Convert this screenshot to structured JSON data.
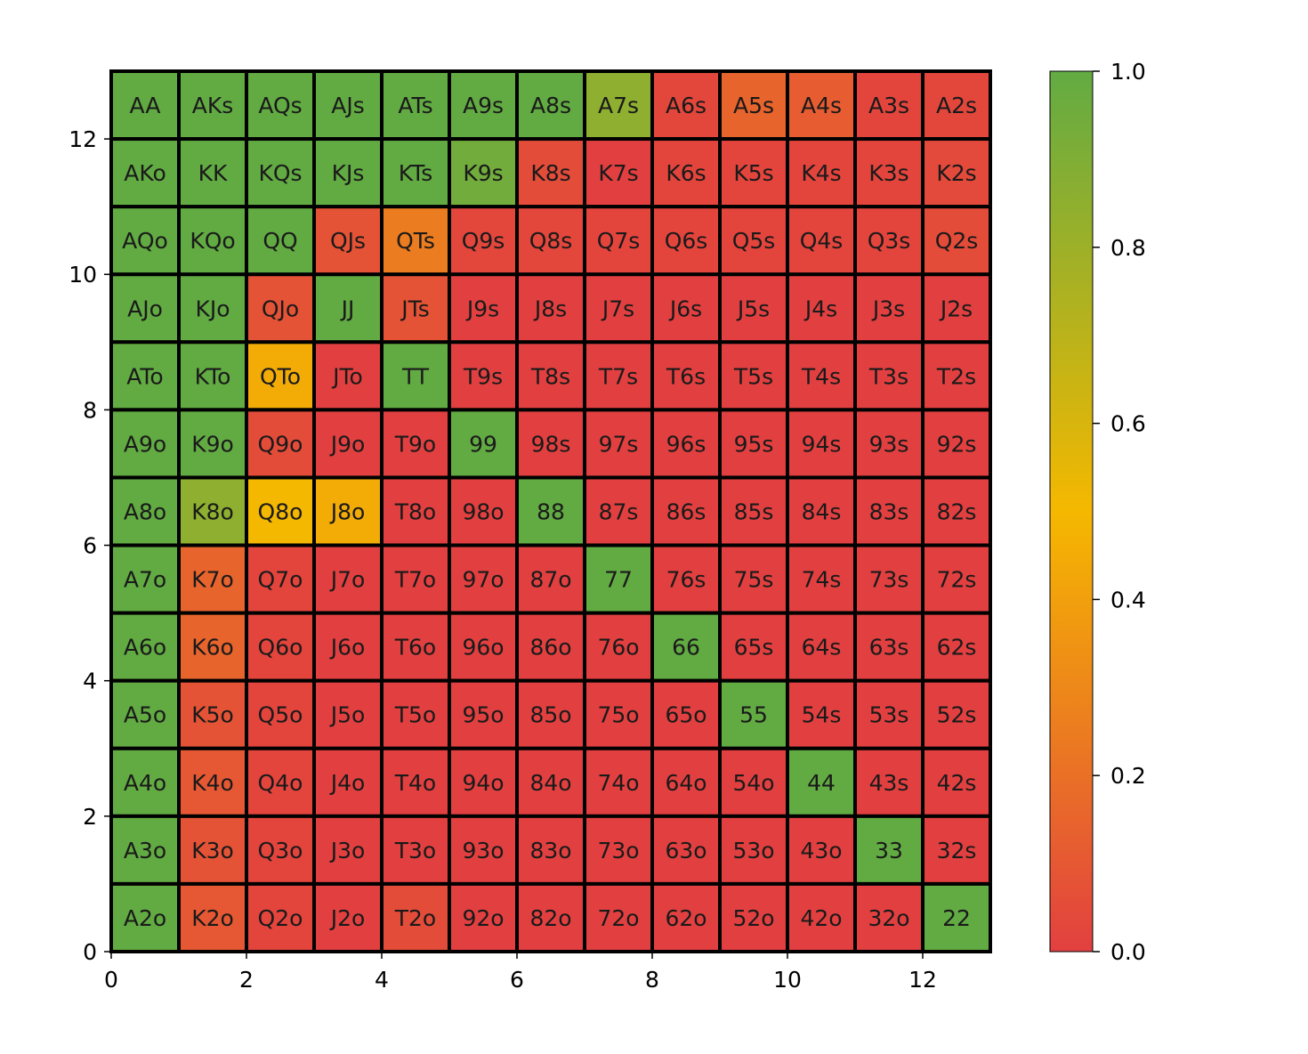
{
  "chart_data": {
    "type": "heatmap",
    "title": "",
    "xlabel": "",
    "ylabel": "",
    "xlim": [
      0,
      13
    ],
    "ylim": [
      0,
      13
    ],
    "xticks": [
      "0",
      "2",
      "4",
      "6",
      "8",
      "10",
      "12"
    ],
    "yticks": [
      "0",
      "2",
      "4",
      "6",
      "8",
      "10",
      "12"
    ],
    "colorbar": {
      "range": [
        0,
        1
      ],
      "ticks": [
        "0.0",
        "0.2",
        "0.4",
        "0.6",
        "0.8",
        "1.0"
      ],
      "colors": [
        "#e24040",
        "#f5b800",
        "#62ab43"
      ]
    },
    "rows": [
      {
        "labels": [
          "AA",
          "AKs",
          "AQs",
          "AJs",
          "ATs",
          "A9s",
          "A8s",
          "A7s",
          "A6s",
          "A5s",
          "A4s",
          "A3s",
          "A2s"
        ],
        "values": [
          1,
          1,
          1,
          1,
          1,
          1,
          1,
          0.85,
          0.03,
          0.15,
          0.12,
          0.02,
          0.03
        ]
      },
      {
        "labels": [
          "AKo",
          "KK",
          "KQs",
          "KJs",
          "KTs",
          "K9s",
          "K8s",
          "K7s",
          "K6s",
          "K5s",
          "K4s",
          "K3s",
          "K2s"
        ],
        "values": [
          1,
          1,
          1,
          1,
          1,
          0.95,
          0.05,
          0,
          0.02,
          0.02,
          0.02,
          0.02,
          0.04
        ]
      },
      {
        "labels": [
          "AQo",
          "KQo",
          "QQ",
          "QJs",
          "QTs",
          "Q9s",
          "Q8s",
          "Q7s",
          "Q6s",
          "Q5s",
          "Q4s",
          "Q3s",
          "Q2s"
        ],
        "values": [
          1,
          1,
          1,
          0.08,
          0.25,
          0.03,
          0.03,
          0.02,
          0.02,
          0.02,
          0.02,
          0.02,
          0.05
        ]
      },
      {
        "labels": [
          "AJo",
          "KJo",
          "QJo",
          "JJ",
          "JTs",
          "J9s",
          "J8s",
          "J7s",
          "J6s",
          "J5s",
          "J4s",
          "J3s",
          "J2s"
        ],
        "values": [
          1,
          1,
          0.08,
          1,
          0.08,
          0,
          0,
          0,
          0,
          0,
          0,
          0,
          0
        ]
      },
      {
        "labels": [
          "ATo",
          "KTo",
          "QTo",
          "JTo",
          "TT",
          "T9s",
          "T8s",
          "T7s",
          "T6s",
          "T5s",
          "T4s",
          "T3s",
          "T2s"
        ],
        "values": [
          1,
          1,
          0.45,
          0,
          1,
          0,
          0,
          0,
          0,
          0,
          0,
          0,
          0
        ]
      },
      {
        "labels": [
          "A9o",
          "K9o",
          "Q9o",
          "J9o",
          "T9o",
          "99",
          "98s",
          "97s",
          "96s",
          "95s",
          "94s",
          "93s",
          "92s"
        ],
        "values": [
          1,
          1,
          0.05,
          0,
          0,
          1,
          0,
          0,
          0,
          0,
          0,
          0,
          0
        ]
      },
      {
        "labels": [
          "A8o",
          "K8o",
          "Q8o",
          "J8o",
          "T8o",
          "98o",
          "88",
          "87s",
          "86s",
          "85s",
          "84s",
          "83s",
          "82s"
        ],
        "values": [
          1,
          0.85,
          0.5,
          0.45,
          0,
          0,
          1,
          0,
          0,
          0,
          0,
          0,
          0
        ]
      },
      {
        "labels": [
          "A7o",
          "K7o",
          "Q7o",
          "J7o",
          "T7o",
          "97o",
          "87o",
          "77",
          "76s",
          "75s",
          "74s",
          "73s",
          "72s"
        ],
        "values": [
          1,
          0.15,
          0.02,
          0,
          0,
          0,
          0,
          1,
          0,
          0,
          0,
          0,
          0
        ]
      },
      {
        "labels": [
          "A6o",
          "K6o",
          "Q6o",
          "J6o",
          "T6o",
          "96o",
          "86o",
          "76o",
          "66",
          "65s",
          "64s",
          "63s",
          "62s"
        ],
        "values": [
          1,
          0.15,
          0.02,
          0,
          0,
          0,
          0,
          0,
          1,
          0,
          0,
          0,
          0
        ]
      },
      {
        "labels": [
          "A5o",
          "K5o",
          "Q5o",
          "J5o",
          "T5o",
          "95o",
          "85o",
          "75o",
          "65o",
          "55",
          "54s",
          "53s",
          "52s"
        ],
        "values": [
          1,
          0.08,
          0.02,
          0,
          0,
          0,
          0,
          0,
          0,
          1,
          0,
          0,
          0
        ]
      },
      {
        "labels": [
          "A4o",
          "K4o",
          "Q4o",
          "J4o",
          "T4o",
          "94o",
          "84o",
          "74o",
          "64o",
          "54o",
          "44",
          "43s",
          "42s"
        ],
        "values": [
          1,
          0.1,
          0.02,
          0,
          0,
          0,
          0,
          0,
          0,
          0,
          1,
          0,
          0
        ]
      },
      {
        "labels": [
          "A3o",
          "K3o",
          "Q3o",
          "J3o",
          "T3o",
          "93o",
          "83o",
          "73o",
          "63o",
          "53o",
          "43o",
          "33",
          "32s"
        ],
        "values": [
          1,
          0.08,
          0.02,
          0,
          0,
          0,
          0,
          0,
          0,
          0,
          0,
          1,
          0
        ]
      },
      {
        "labels": [
          "A2o",
          "K2o",
          "Q2o",
          "J2o",
          "T2o",
          "92o",
          "82o",
          "72o",
          "62o",
          "52o",
          "42o",
          "32o",
          "22"
        ],
        "values": [
          1,
          0.1,
          0.02,
          0,
          0.05,
          0,
          0,
          0,
          0,
          0,
          0,
          0,
          1
        ]
      }
    ]
  }
}
